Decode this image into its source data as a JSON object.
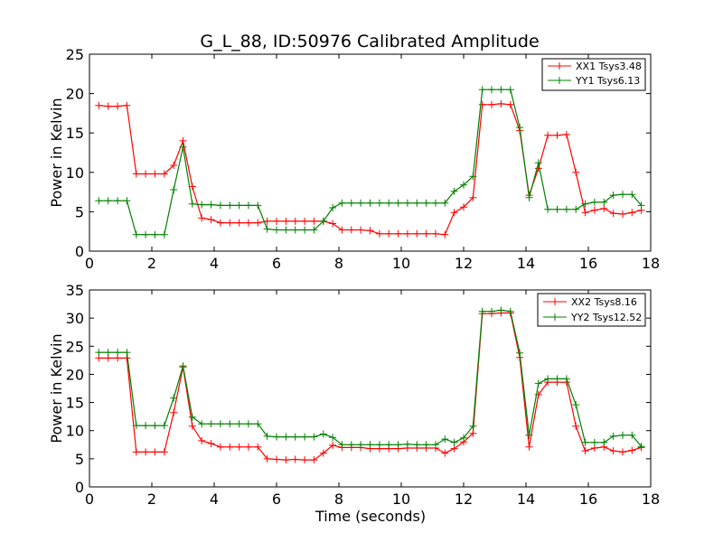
{
  "chart_data": [
    {
      "type": "line",
      "title": "G_L_88, ID:50976 Calibrated Amplitude",
      "xlabel": "",
      "ylabel": "Power in Kelvin",
      "xlim": [
        0,
        18
      ],
      "ylim": [
        0,
        25
      ],
      "xticks": [
        "0",
        "2",
        "4",
        "6",
        "8",
        "10",
        "12",
        "14",
        "16",
        "18"
      ],
      "yticks": [
        "0",
        "5",
        "10",
        "15",
        "20",
        "25"
      ],
      "legend_position": "top-right",
      "x": [
        0.3,
        0.6,
        0.9,
        1.2,
        1.5,
        1.8,
        2.1,
        2.4,
        2.7,
        3.0,
        3.3,
        3.6,
        3.9,
        4.2,
        4.5,
        4.8,
        5.1,
        5.4,
        5.7,
        6.0,
        6.3,
        6.6,
        6.9,
        7.2,
        7.5,
        7.8,
        8.1,
        8.4,
        8.7,
        9.0,
        9.3,
        9.6,
        9.9,
        10.2,
        10.5,
        10.8,
        11.1,
        11.4,
        11.7,
        12.0,
        12.3,
        12.6,
        12.9,
        13.2,
        13.5,
        13.8,
        14.1,
        14.4,
        14.7,
        15.0,
        15.3,
        15.6,
        15.9,
        16.2,
        16.5,
        16.8,
        17.1,
        17.4,
        17.7
      ],
      "series": [
        {
          "name": "XX1 Tsys3.48",
          "color": "#ff0000",
          "values": [
            18.5,
            18.4,
            18.4,
            18.5,
            9.8,
            9.8,
            9.8,
            9.8,
            10.9,
            14.0,
            8.2,
            4.2,
            4.0,
            3.6,
            3.6,
            3.6,
            3.6,
            3.6,
            3.8,
            3.8,
            3.8,
            3.8,
            3.8,
            3.8,
            3.8,
            3.5,
            2.7,
            2.7,
            2.7,
            2.6,
            2.2,
            2.2,
            2.2,
            2.2,
            2.2,
            2.2,
            2.2,
            2.1,
            4.9,
            5.6,
            6.8,
            18.6,
            18.6,
            18.7,
            18.6,
            15.3,
            7.1,
            10.5,
            14.7,
            14.7,
            14.8,
            10.0,
            4.9,
            5.2,
            5.4,
            4.8,
            4.7,
            4.9,
            5.2
          ]
        },
        {
          "name": "YY1 Tsys6.13",
          "color": "#008000",
          "values": [
            6.4,
            6.4,
            6.4,
            6.4,
            2.1,
            2.1,
            2.1,
            2.1,
            7.8,
            13.2,
            6.0,
            5.9,
            5.9,
            5.8,
            5.8,
            5.8,
            5.8,
            5.8,
            2.8,
            2.7,
            2.7,
            2.7,
            2.7,
            2.7,
            3.8,
            5.5,
            6.1,
            6.1,
            6.1,
            6.1,
            6.1,
            6.1,
            6.1,
            6.1,
            6.1,
            6.1,
            6.1,
            6.1,
            7.6,
            8.4,
            9.5,
            20.5,
            20.5,
            20.5,
            20.5,
            15.7,
            6.8,
            11.2,
            5.3,
            5.3,
            5.3,
            5.3,
            6.0,
            6.2,
            6.2,
            7.1,
            7.2,
            7.2,
            5.8
          ]
        }
      ]
    },
    {
      "type": "line",
      "title": "",
      "xlabel": "Time (seconds)",
      "ylabel": "Power in Kelvin",
      "xlim": [
        0,
        18
      ],
      "ylim": [
        0,
        35
      ],
      "xticks": [
        "0",
        "2",
        "4",
        "6",
        "8",
        "10",
        "12",
        "14",
        "16",
        "18"
      ],
      "yticks": [
        "0",
        "5",
        "10",
        "15",
        "20",
        "25",
        "30",
        "35"
      ],
      "legend_position": "top-right",
      "x": [
        0.3,
        0.6,
        0.9,
        1.2,
        1.5,
        1.8,
        2.1,
        2.4,
        2.7,
        3.0,
        3.3,
        3.6,
        3.9,
        4.2,
        4.5,
        4.8,
        5.1,
        5.4,
        5.7,
        6.0,
        6.3,
        6.6,
        6.9,
        7.2,
        7.5,
        7.8,
        8.1,
        8.4,
        8.7,
        9.0,
        9.3,
        9.6,
        9.9,
        10.2,
        10.5,
        10.8,
        11.1,
        11.4,
        11.7,
        12.0,
        12.3,
        12.6,
        12.9,
        13.2,
        13.5,
        13.8,
        14.1,
        14.4,
        14.7,
        15.0,
        15.3,
        15.6,
        15.9,
        16.2,
        16.5,
        16.8,
        17.1,
        17.4,
        17.7
      ],
      "series": [
        {
          "name": "XX2 Tsys8.16",
          "color": "#ff0000",
          "values": [
            22.9,
            22.9,
            22.9,
            22.9,
            6.2,
            6.2,
            6.2,
            6.2,
            13.2,
            21.3,
            10.8,
            8.2,
            7.7,
            7.1,
            7.1,
            7.1,
            7.1,
            7.1,
            5.0,
            4.9,
            4.8,
            4.9,
            4.8,
            4.8,
            6.0,
            7.4,
            7.0,
            7.0,
            7.0,
            6.8,
            6.8,
            6.8,
            6.8,
            6.9,
            6.9,
            6.9,
            6.9,
            6.0,
            6.8,
            8.0,
            9.5,
            30.8,
            30.8,
            30.9,
            30.9,
            23.0,
            7.1,
            16.4,
            18.6,
            18.6,
            18.6,
            10.8,
            6.4,
            6.9,
            7.1,
            6.4,
            6.2,
            6.5,
            7.0
          ]
        },
        {
          "name": "YY2 Tsys12.52",
          "color": "#008000",
          "values": [
            23.9,
            23.9,
            23.9,
            23.9,
            10.9,
            10.9,
            10.9,
            10.9,
            15.8,
            21.5,
            12.4,
            11.2,
            11.2,
            11.2,
            11.2,
            11.2,
            11.2,
            11.2,
            9.0,
            8.9,
            8.9,
            8.9,
            8.9,
            8.9,
            9.4,
            8.8,
            7.5,
            7.5,
            7.5,
            7.5,
            7.5,
            7.5,
            7.5,
            7.6,
            7.5,
            7.5,
            7.5,
            8.5,
            7.9,
            8.7,
            10.8,
            31.2,
            31.2,
            31.4,
            31.2,
            23.8,
            9.2,
            18.4,
            19.2,
            19.2,
            19.2,
            14.6,
            7.9,
            7.9,
            7.9,
            9.0,
            9.2,
            9.2,
            7.2
          ]
        }
      ]
    }
  ]
}
